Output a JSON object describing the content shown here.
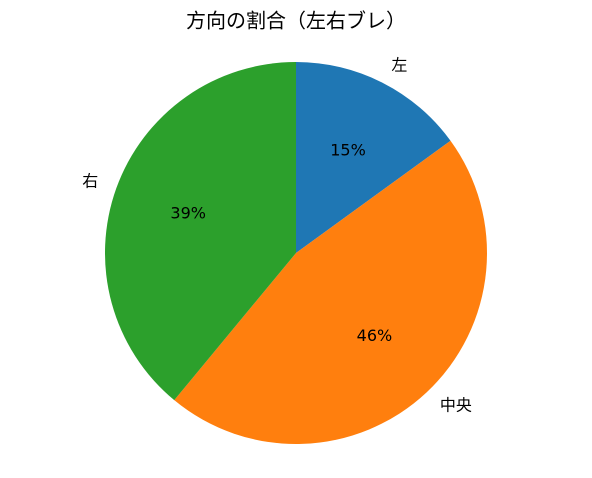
{
  "chart_data": {
    "type": "pie",
    "title": "方向の割合（左右ブレ）",
    "categories": [
      "左",
      "中央",
      "右"
    ],
    "values": [
      15,
      46,
      39
    ],
    "value_labels": [
      "15%",
      "46%",
      "39%"
    ],
    "colors": [
      "#1f77b4",
      "#ff7f0e",
      "#2ca02c"
    ]
  }
}
